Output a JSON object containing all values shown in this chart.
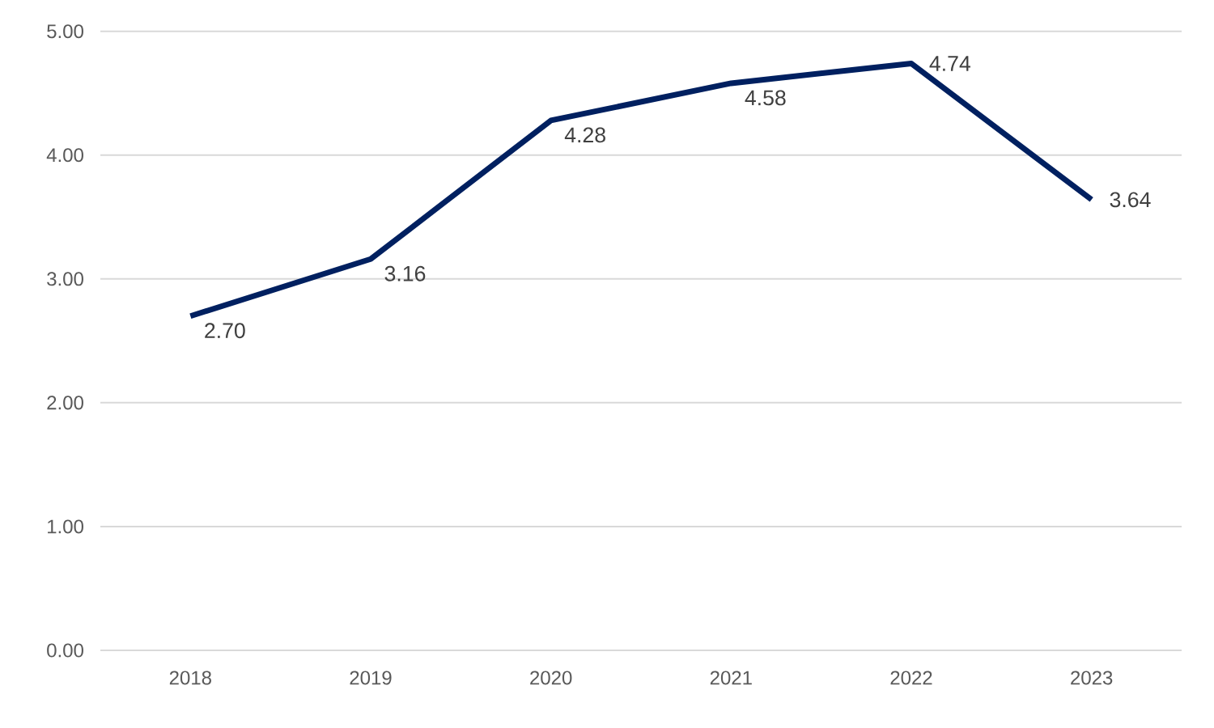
{
  "chart_data": {
    "type": "line",
    "categories": [
      "2018",
      "2019",
      "2020",
      "2021",
      "2022",
      "2023"
    ],
    "values": [
      2.7,
      3.16,
      4.28,
      4.58,
      4.74,
      3.64
    ],
    "value_labels": [
      "2.70",
      "3.16",
      "4.28",
      "4.58",
      "4.74",
      "3.64"
    ],
    "color": "#002060",
    "ylim": [
      0,
      5
    ],
    "yticks": [
      {
        "value": 0,
        "label": "0.00"
      },
      {
        "value": 1,
        "label": "1.00"
      },
      {
        "value": 2,
        "label": "2.00"
      },
      {
        "value": 3,
        "label": "3.00"
      },
      {
        "value": 4,
        "label": "4.00"
      },
      {
        "value": 5,
        "label": "5.00"
      }
    ],
    "grid": "y",
    "marker": "none",
    "line_style": "solid"
  }
}
